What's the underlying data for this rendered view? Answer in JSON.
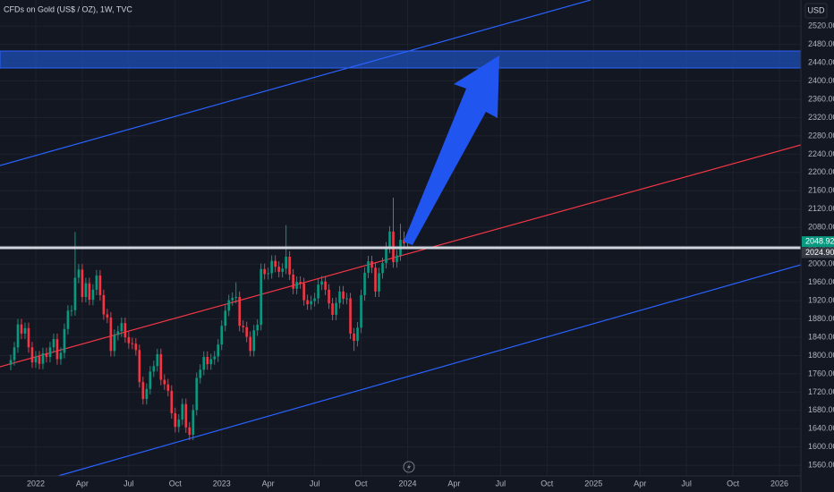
{
  "chart_data": {
    "type": "candlestick",
    "title": "CFDs on Gold (US$ / OZ), 1W, TVC",
    "currency": "USD",
    "up_color": "#089981",
    "down_color": "#f23645",
    "grid": true,
    "xlim": [
      -10,
      214
    ],
    "xticks": [
      {
        "value": 0,
        "label": "2022"
      },
      {
        "value": 13,
        "label": "Apr"
      },
      {
        "value": 26,
        "label": "Jul"
      },
      {
        "value": 39,
        "label": "Oct"
      },
      {
        "value": 52,
        "label": "2023"
      },
      {
        "value": 65,
        "label": "Apr"
      },
      {
        "value": 78,
        "label": "Jul"
      },
      {
        "value": 91,
        "label": "Oct"
      },
      {
        "value": 104,
        "label": "2024"
      },
      {
        "value": 117,
        "label": "Apr"
      },
      {
        "value": 130,
        "label": "Jul"
      },
      {
        "value": 143,
        "label": "Oct"
      },
      {
        "value": 156,
        "label": "2025"
      },
      {
        "value": 169,
        "label": "Apr"
      },
      {
        "value": 182,
        "label": "Jul"
      },
      {
        "value": 195,
        "label": "Oct"
      },
      {
        "value": 208,
        "label": "2026"
      }
    ],
    "ylim": [
      1537,
      2577
    ],
    "yticks": [
      {
        "value": 1560,
        "label": "1560.00"
      },
      {
        "value": 1600,
        "label": "1600.00"
      },
      {
        "value": 1640,
        "label": "1640.00"
      },
      {
        "value": 1680,
        "label": "1680.00"
      },
      {
        "value": 1720,
        "label": "1720.00"
      },
      {
        "value": 1760,
        "label": "1760.00"
      },
      {
        "value": 1800,
        "label": "1800.00"
      },
      {
        "value": 1840,
        "label": "1840.00"
      },
      {
        "value": 1880,
        "label": "1880.00"
      },
      {
        "value": 1920,
        "label": "1920.00"
      },
      {
        "value": 1960,
        "label": "1960.00"
      },
      {
        "value": 2000,
        "label": "2000.00"
      },
      {
        "value": 2040,
        "label": "2040.00"
      },
      {
        "value": 2080,
        "label": "2080.00"
      },
      {
        "value": 2120,
        "label": "2120.00"
      },
      {
        "value": 2160,
        "label": "2160.00"
      },
      {
        "value": 2200,
        "label": "2200.00"
      },
      {
        "value": 2240,
        "label": "2240.00"
      },
      {
        "value": 2280,
        "label": "2280.00"
      },
      {
        "value": 2320,
        "label": "2320.00"
      },
      {
        "value": 2360,
        "label": "2360.00"
      },
      {
        "value": 2400,
        "label": "2400.00"
      },
      {
        "value": 2440,
        "label": "2440.00"
      },
      {
        "value": 2480,
        "label": "2480.00"
      },
      {
        "value": 2520,
        "label": "2520.00"
      }
    ],
    "last_price": 2048.92,
    "line_price": {
      "value": 2024.9,
      "label": "2024.90"
    },
    "x": [
      -7,
      -6,
      -5,
      -4,
      -3,
      -2,
      -1,
      0,
      1,
      2,
      3,
      4,
      5,
      6,
      7,
      8,
      9,
      10,
      11,
      12,
      13,
      14,
      15,
      16,
      17,
      18,
      19,
      20,
      21,
      22,
      23,
      24,
      25,
      26,
      27,
      28,
      29,
      30,
      31,
      32,
      33,
      34,
      35,
      36,
      37,
      38,
      39,
      40,
      41,
      42,
      43,
      44,
      45,
      46,
      47,
      48,
      49,
      50,
      51,
      52,
      53,
      54,
      55,
      56,
      57,
      58,
      59,
      60,
      61,
      62,
      63,
      64,
      65,
      66,
      67,
      68,
      69,
      70,
      71,
      72,
      73,
      74,
      75,
      76,
      77,
      78,
      79,
      80,
      81,
      82,
      83,
      84,
      85,
      86,
      87,
      88,
      89,
      90,
      91,
      92,
      93,
      94,
      95,
      96,
      97,
      98,
      99,
      100,
      101,
      102,
      103,
      104
    ],
    "open": [
      1780,
      1790,
      1818,
      1868,
      1848,
      1860,
      1818,
      1785,
      1798,
      1782,
      1805,
      1797,
      1818,
      1836,
      1792,
      1806,
      1858,
      1898,
      1899,
      1970,
      1988,
      1928,
      1958,
      1922,
      1944,
      1975,
      1932,
      1890,
      1883,
      1810,
      1845,
      1853,
      1871,
      1840,
      1827,
      1826,
      1812,
      1742,
      1705,
      1727,
      1765,
      1777,
      1803,
      1747,
      1737,
      1723,
      1674,
      1644,
      1660,
      1694,
      1643,
      1627,
      1681,
      1751,
      1769,
      1797,
      1781,
      1792,
      1798,
      1824,
      1865,
      1898,
      1921,
      1926,
      1928,
      1865,
      1862,
      1841,
      1810,
      1855,
      1867,
      1989,
      1978,
      1980,
      2007,
      1994,
      1983,
      1990,
      2016,
      1977,
      1946,
      1961,
      1958,
      1921,
      1912,
      1919,
      1925,
      1955,
      1962,
      1944,
      1914,
      1889,
      1915,
      1940,
      1924,
      1925,
      1848,
      1832,
      1861,
      1932,
      1981,
      2006,
      1992,
      1940,
      1980,
      2002,
      2036,
      2071,
      2004,
      2019,
      2053,
      2045
    ],
    "high": [
      1802,
      1830,
      1880,
      1880,
      1872,
      1872,
      1830,
      1810,
      1810,
      1817,
      1817,
      1830,
      1848,
      1848,
      1818,
      1870,
      1910,
      1910,
      2070,
      2000,
      2000,
      1970,
      1970,
      1956,
      1987,
      1987,
      1944,
      1902,
      1895,
      1857,
      1865,
      1883,
      1883,
      1852,
      1839,
      1838,
      1824,
      1754,
      1739,
      1777,
      1789,
      1815,
      1815,
      1759,
      1749,
      1735,
      1686,
      1672,
      1706,
      1706,
      1655,
      1693,
      1763,
      1781,
      1809,
      1809,
      1804,
      1810,
      1836,
      1877,
      1910,
      1933,
      1938,
      1960,
      1940,
      1877,
      1874,
      1853,
      1867,
      1879,
      2001,
      2001,
      1992,
      2019,
      2019,
      2006,
      2002,
      2085,
      2028,
      1989,
      1973,
      1973,
      1970,
      1933,
      1931,
      1937,
      1967,
      1974,
      1974,
      1956,
      1926,
      1927,
      1952,
      1952,
      1937,
      1937,
      1860,
      1873,
      1944,
      1993,
      2018,
      2018,
      2004,
      1992,
      2014,
      2048,
      2083,
      2145,
      2031,
      2088,
      2071,
      2064
    ],
    "low": [
      1768,
      1778,
      1806,
      1836,
      1836,
      1806,
      1773,
      1773,
      1770,
      1770,
      1785,
      1785,
      1806,
      1780,
      1780,
      1794,
      1846,
      1886,
      1887,
      1958,
      1916,
      1916,
      1910,
      1910,
      1932,
      1920,
      1878,
      1871,
      1798,
      1798,
      1833,
      1841,
      1828,
      1815,
      1814,
      1800,
      1730,
      1693,
      1693,
      1715,
      1753,
      1765,
      1735,
      1725,
      1711,
      1662,
      1632,
      1632,
      1648,
      1631,
      1615,
      1615,
      1669,
      1739,
      1757,
      1769,
      1769,
      1780,
      1786,
      1812,
      1853,
      1886,
      1909,
      1914,
      1853,
      1850,
      1829,
      1798,
      1798,
      1843,
      1855,
      1966,
      1966,
      1968,
      1982,
      1971,
      1971,
      1978,
      1965,
      1934,
      1934,
      1946,
      1909,
      1900,
      1900,
      1907,
      1913,
      1943,
      1932,
      1902,
      1877,
      1877,
      1903,
      1912,
      1912,
      1836,
      1810,
      1820,
      1849,
      1920,
      1969,
      1980,
      1928,
      1928,
      1968,
      1990,
      2024,
      1992,
      1992,
      2007,
      2033,
      2033
    ],
    "close": [
      1790,
      1818,
      1868,
      1848,
      1860,
      1818,
      1785,
      1798,
      1782,
      1805,
      1797,
      1818,
      1836,
      1792,
      1806,
      1858,
      1898,
      1899,
      1970,
      1988,
      1928,
      1958,
      1922,
      1944,
      1975,
      1932,
      1890,
      1883,
      1810,
      1845,
      1853,
      1871,
      1840,
      1827,
      1826,
      1812,
      1742,
      1705,
      1727,
      1765,
      1777,
      1803,
      1747,
      1737,
      1723,
      1674,
      1644,
      1660,
      1694,
      1643,
      1627,
      1681,
      1751,
      1769,
      1797,
      1781,
      1792,
      1798,
      1824,
      1865,
      1898,
      1921,
      1926,
      1928,
      1865,
      1862,
      1841,
      1810,
      1855,
      1867,
      1989,
      1978,
      1980,
      2007,
      1994,
      1983,
      1990,
      2016,
      1977,
      1946,
      1961,
      1958,
      1921,
      1912,
      1919,
      1925,
      1955,
      1962,
      1944,
      1914,
      1889,
      1915,
      1940,
      1924,
      1925,
      1848,
      1832,
      1861,
      1932,
      1981,
      2006,
      1992,
      1940,
      1980,
      2002,
      2036,
      2071,
      2004,
      2019,
      2053,
      2045,
      2049
    ]
  }
}
